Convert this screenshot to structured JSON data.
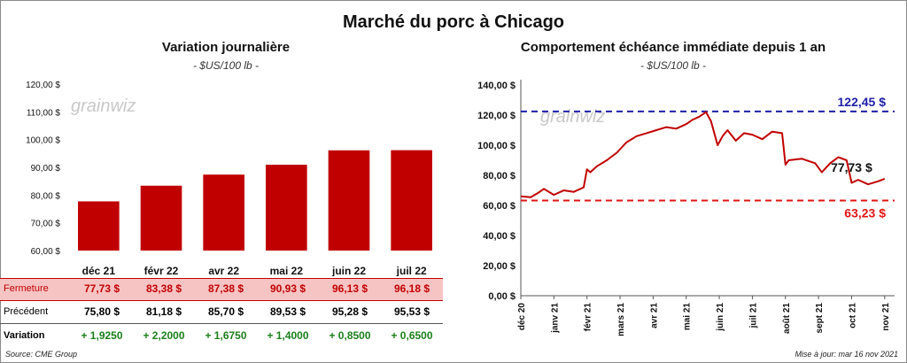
{
  "title": "Marché du porc à Chicago",
  "left_panel": {
    "title": "Variation  journalière",
    "subtitle": "- $US/100 lb -",
    "watermark": "grainwiz"
  },
  "right_panel": {
    "title": "Comportement  échéance immédiate depuis 1 an",
    "subtitle": "- $US/100 lb -",
    "watermark": "grainwiz"
  },
  "table": {
    "rows": [
      {
        "label": "Fermeture",
        "values": [
          "77,73  $",
          "83,38  $",
          "87,38  $",
          "90,93  $",
          "96,13  $",
          "96,18  $"
        ]
      },
      {
        "label": "Précédent",
        "values": [
          "75,80  $",
          "81,18  $",
          "85,70  $",
          "89,53  $",
          "95,28  $",
          "95,53  $"
        ]
      },
      {
        "label": "Variation",
        "values": [
          "+ 1,9250",
          "+ 2,2000",
          "+ 1,6750",
          "+ 1,4000",
          "+ 0,8500",
          "+ 0,6500"
        ]
      }
    ]
  },
  "source": "Source: CME Group",
  "updated": "Mise à jour: mar 16 nov 2021",
  "colors": {
    "bar": "#c00000",
    "line": "#c00000",
    "high": "#1f1fa8",
    "low": "#e01515"
  },
  "chart_data": [
    {
      "type": "bar",
      "title": "Variation  journalière",
      "subtitle": "- $US/100 lb -",
      "categories": [
        "déc 21",
        "févr 22",
        "avr 22",
        "mai 22",
        "juin 22",
        "juil 22"
      ],
      "values": [
        77.73,
        83.38,
        87.38,
        90.93,
        96.13,
        96.18
      ],
      "ylim": [
        60,
        120
      ],
      "yticks": [
        "60,00 $",
        "70,00 $",
        "80,00 $",
        "90,00 $",
        "100,00 $",
        "110,00 $",
        "120,00 $"
      ],
      "grid": false
    },
    {
      "type": "line",
      "title": "Comportement  échéance immédiate depuis 1 an",
      "subtitle": "- $US/100 lb -",
      "ylim": [
        0,
        140
      ],
      "yticks": [
        "0,00 $",
        "20,00 $",
        "40,00 $",
        "60,00 $",
        "80,00 $",
        "100,00 $",
        "120,00 $",
        "140,00 $"
      ],
      "xticks": [
        "déc 20",
        "janv 21",
        "févr 21",
        "mars 21",
        "avr 21",
        "mai 21",
        "juin 21",
        "juil 21",
        "août 21",
        "sept 21",
        "oct 21",
        "nov 21"
      ],
      "x_months": [
        0,
        1,
        2,
        3,
        4,
        5,
        6,
        7,
        8,
        9,
        10,
        11
      ],
      "series": [
        {
          "x": [
            0,
            0.3,
            0.5,
            0.7,
            1.0,
            1.3,
            1.6,
            1.9,
            2.0,
            2.1,
            2.3,
            2.6,
            2.9,
            3.2,
            3.5,
            3.8,
            4.1,
            4.4,
            4.7,
            5.0,
            5.2,
            5.4,
            5.6,
            5.75,
            5.95,
            6.1,
            6.25,
            6.5,
            6.75,
            7.0,
            7.3,
            7.6,
            7.9,
            8.0,
            8.1,
            8.5,
            8.9,
            9.1,
            9.35,
            9.6,
            9.85,
            10.0,
            10.2,
            10.5,
            10.8,
            11.0
          ],
          "y": [
            66,
            65.5,
            68,
            71,
            67,
            70,
            69,
            72,
            84,
            82,
            86,
            90,
            95,
            102,
            106,
            108,
            110,
            112,
            111,
            114,
            117,
            119,
            122,
            116,
            100,
            106,
            110,
            103,
            108,
            107,
            104,
            109,
            108,
            87,
            90,
            91,
            88,
            82,
            88,
            92,
            90,
            75,
            77,
            74,
            76,
            77.73
          ]
        }
      ],
      "reference_lines": [
        {
          "value": 122.45,
          "label": "122,45 $",
          "color": "#1f1fa8"
        },
        {
          "value": 63.23,
          "label": "63,23 $",
          "color": "#e01515"
        }
      ],
      "last_value_label": "77,73 $",
      "grid": false
    }
  ]
}
